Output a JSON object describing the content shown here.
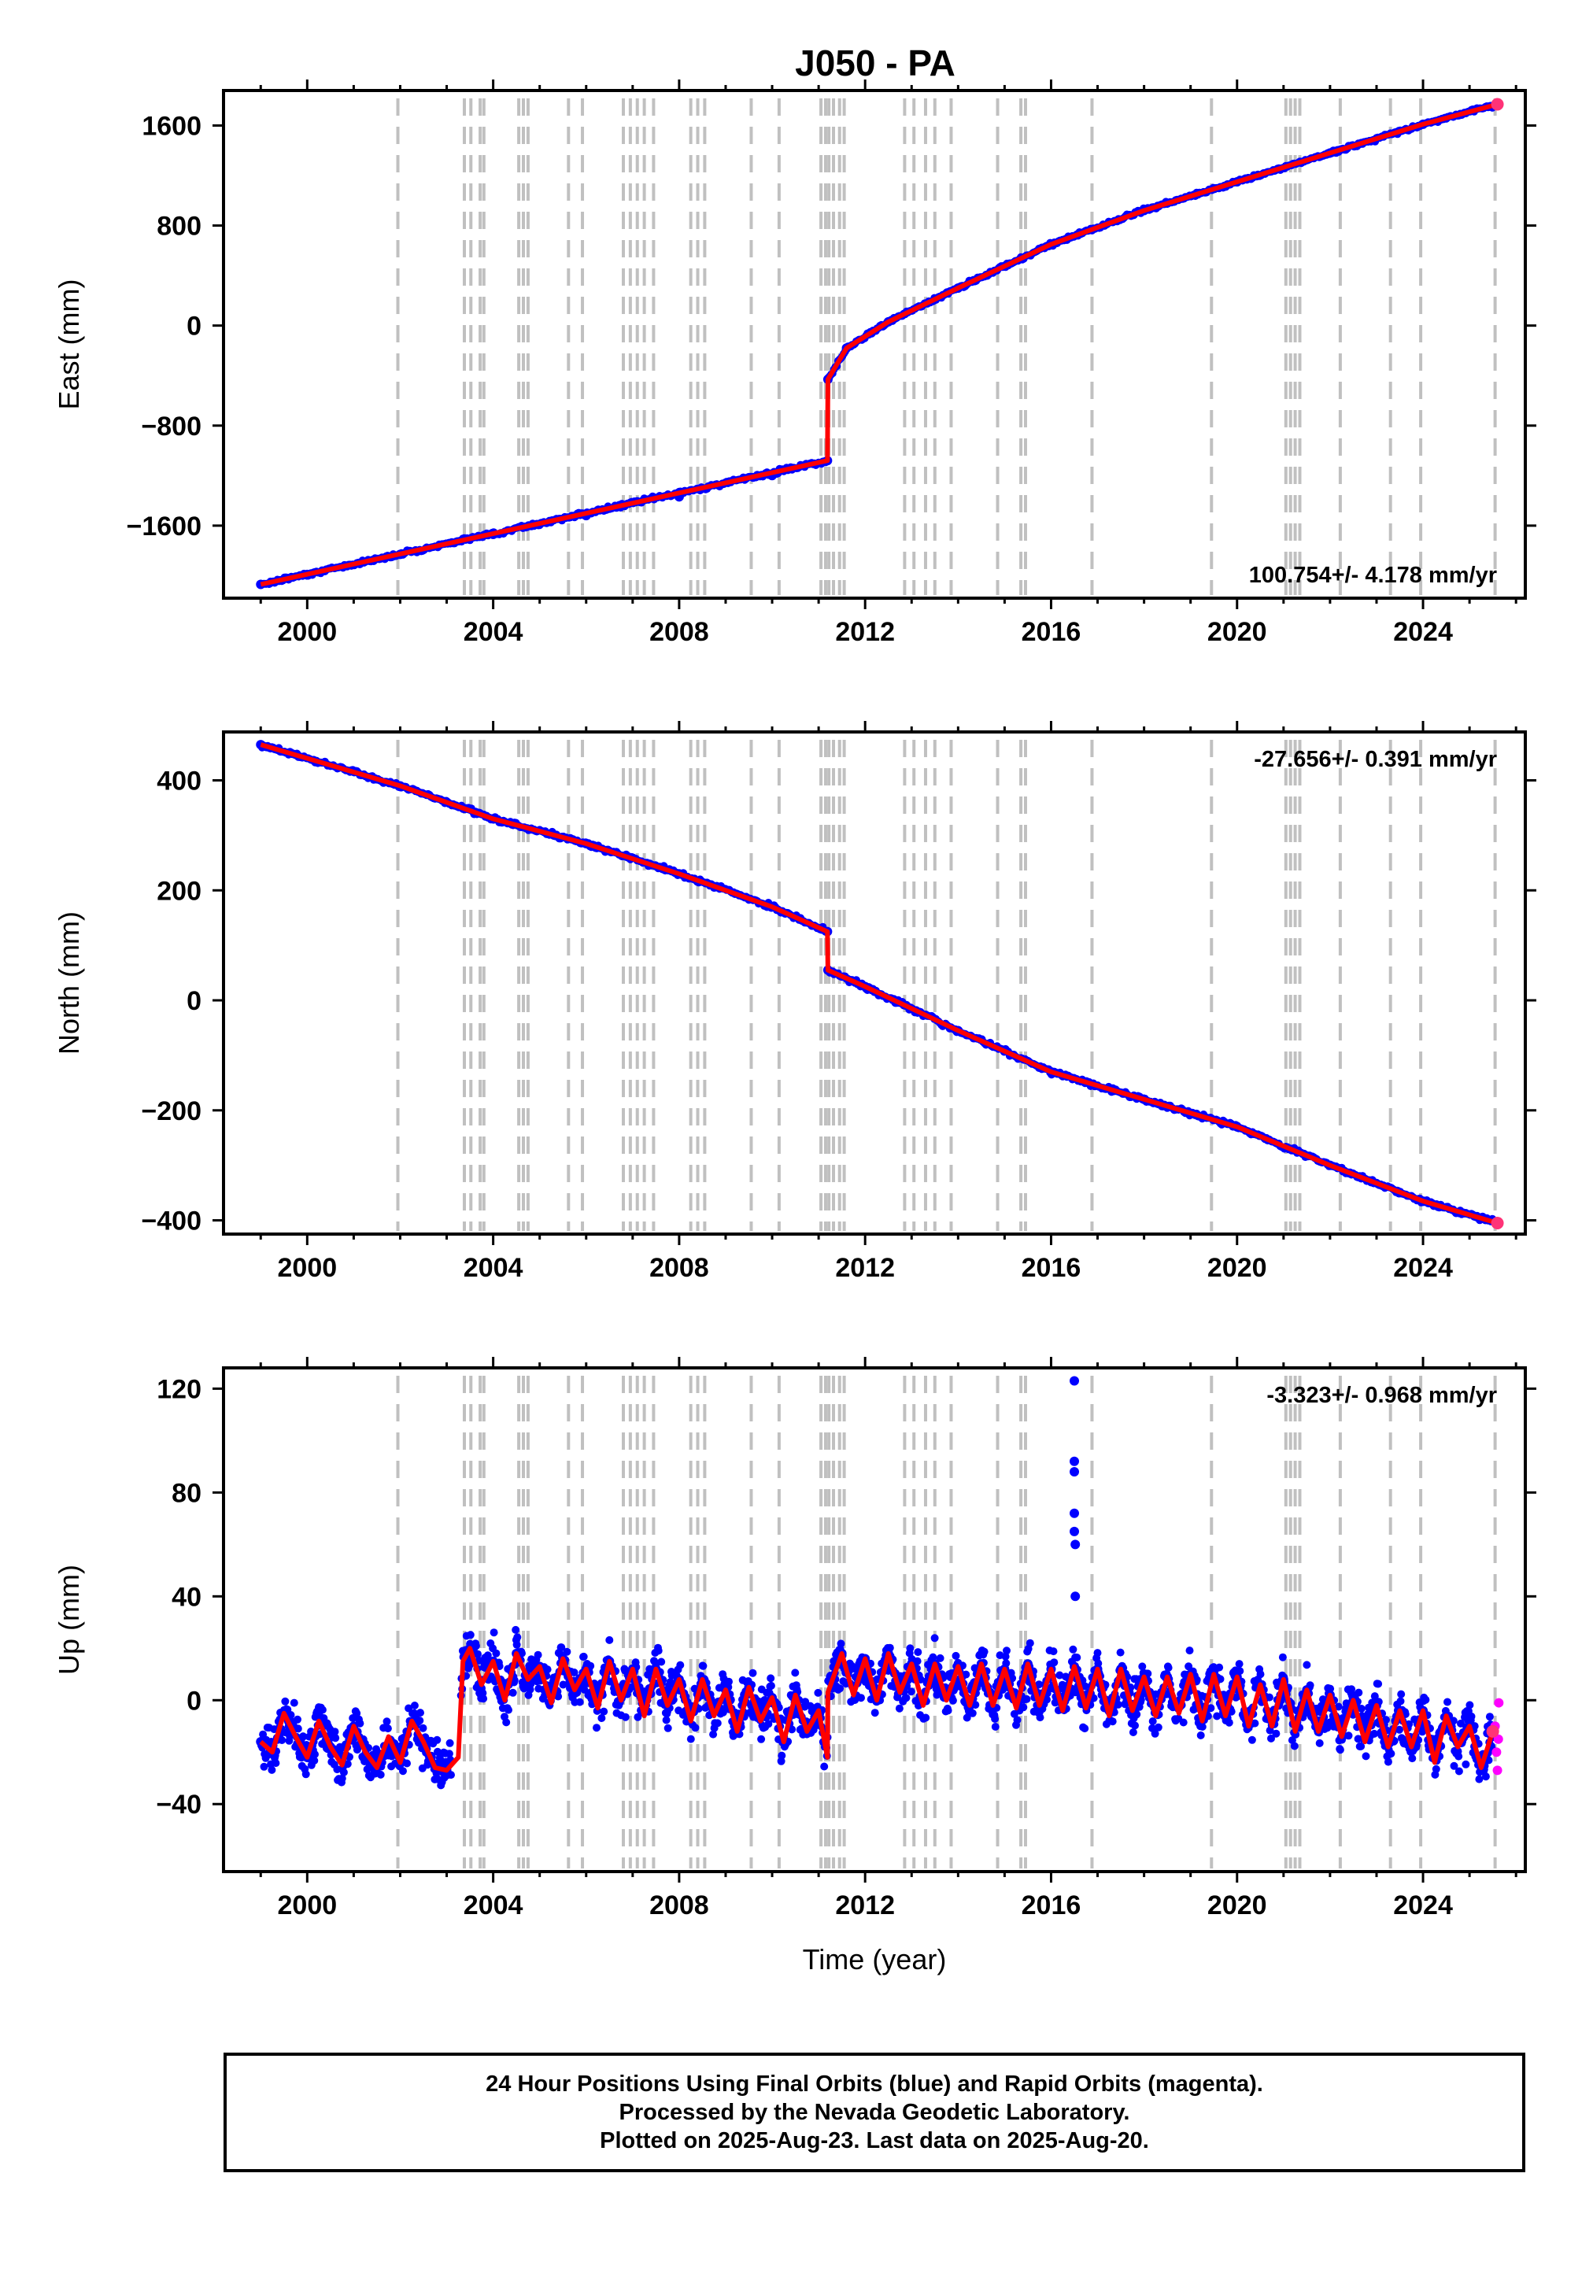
{
  "title": "J050 - PA",
  "footer": {
    "line1": "24 Hour Positions Using Final Orbits (blue) and Rapid Orbits (magenta).",
    "line2": "Processed by the Nevada Geodetic Laboratory.",
    "line3": "Plotted on 2025-Aug-23. Last data on 2025-Aug-20."
  },
  "colors": {
    "final_orbits": "#0000ff",
    "rapid_orbits": "#ff00ff",
    "model": "#ff0000",
    "event_lines": "#c0c0c0"
  },
  "chart_data": [
    {
      "type": "scatter",
      "ylabel": "East (mm)",
      "xlabel": "",
      "rate_label": "100.754+/- 4.178 mm/yr",
      "xlim": [
        1998.2,
        2026.2
      ],
      "ylim": [
        -2180,
        1880
      ],
      "yticks": [
        -1600,
        -800,
        0,
        800,
        1600
      ],
      "xticks": [
        2000,
        2004,
        2008,
        2012,
        2016,
        2020,
        2024
      ],
      "model": {
        "x": [
          1999.0,
          2011.19,
          2011.2,
          2011.6,
          2012.5,
          2014,
          2016,
          2018,
          2020,
          2022,
          2024,
          2025.6
        ],
        "y": [
          -2070,
          -1080,
          -430,
          -180,
          30,
          300,
          650,
          920,
          1150,
          1380,
          1610,
          1770
        ]
      },
      "series": [
        {
          "name": "Final Orbits",
          "color": "#0000ff",
          "x": [
            1999.0,
            2000.0,
            2002.0,
            2004.0,
            2006.0,
            2008.0,
            2010.0,
            2011.19,
            2011.2,
            2011.6,
            2012.5,
            2014,
            2016,
            2018,
            2020,
            2022,
            2024,
            2025.6
          ],
          "y": [
            -2070,
            -1990,
            -1830,
            -1670,
            -1520,
            -1370,
            -1200,
            -1080,
            -430,
            -180,
            30,
            300,
            650,
            920,
            1150,
            1380,
            1610,
            1770
          ]
        }
      ]
    },
    {
      "type": "scatter",
      "ylabel": "North (mm)",
      "xlabel": "",
      "rate_label": "-27.656+/- 0.391 mm/yr",
      "xlim": [
        1998.2,
        2026.2
      ],
      "ylim": [
        -425,
        488
      ],
      "yticks": [
        -400,
        -200,
        0,
        200,
        400
      ],
      "xticks": [
        2000,
        2004,
        2008,
        2012,
        2016,
        2020,
        2024
      ],
      "model": {
        "x": [
          1999.0,
          2002.0,
          2004.0,
          2006.0,
          2008.0,
          2010.0,
          2011.19,
          2011.2,
          2012.0,
          2014.0,
          2016.0,
          2018.0,
          2020.0,
          2022.0,
          2024.0,
          2025.6
        ],
        "y": [
          465,
          390,
          330,
          285,
          230,
          170,
          125,
          55,
          25,
          -55,
          -130,
          -180,
          -230,
          -300,
          -365,
          -405
        ]
      },
      "series": [
        {
          "name": "Final Orbits",
          "color": "#0000ff",
          "x": [
            1999.0,
            2002.0,
            2004.0,
            2006.0,
            2008.0,
            2010.0,
            2011.19,
            2011.2,
            2012.0,
            2014.0,
            2016.0,
            2018.0,
            2020.0,
            2022.0,
            2024.0,
            2025.6
          ],
          "y": [
            465,
            390,
            330,
            285,
            230,
            170,
            125,
            55,
            25,
            -55,
            -130,
            -180,
            -230,
            -300,
            -365,
            -405
          ]
        }
      ]
    },
    {
      "type": "scatter",
      "ylabel": "Up (mm)",
      "xlabel": "Time (year)",
      "rate_label": "-3.323+/- 0.968 mm/yr",
      "xlim": [
        1998.2,
        2026.2
      ],
      "ylim": [
        -66,
        128
      ],
      "yticks": [
        -40,
        0,
        40,
        80,
        120
      ],
      "xticks": [
        2000,
        2004,
        2008,
        2012,
        2016,
        2020,
        2024
      ],
      "model": {
        "x": [
          1999.0,
          1999.25,
          1999.5,
          1999.75,
          2000.0,
          2000.25,
          2000.5,
          2000.75,
          2001.0,
          2001.25,
          2001.5,
          2001.75,
          2002.0,
          2002.25,
          2002.5,
          2002.75,
          2003.0,
          2003.25,
          2003.35,
          2003.5,
          2003.75,
          2004.0,
          2004.25,
          2004.5,
          2004.75,
          2005.0,
          2005.25,
          2005.5,
          2005.75,
          2006.0,
          2006.25,
          2006.5,
          2006.75,
          2007.0,
          2007.25,
          2007.5,
          2007.75,
          2008.0,
          2008.25,
          2008.5,
          2008.75,
          2009.0,
          2009.25,
          2009.5,
          2009.75,
          2010.0,
          2010.25,
          2010.5,
          2010.75,
          2011.0,
          2011.19,
          2011.2,
          2011.5,
          2011.75,
          2012.0,
          2012.25,
          2012.5,
          2012.75,
          2013.0,
          2013.25,
          2013.5,
          2013.75,
          2014.0,
          2014.25,
          2014.5,
          2014.75,
          2015.0,
          2015.25,
          2015.5,
          2015.75,
          2016.0,
          2016.25,
          2016.5,
          2016.75,
          2017.0,
          2017.25,
          2017.5,
          2017.75,
          2018.0,
          2018.25,
          2018.5,
          2018.75,
          2019.0,
          2019.25,
          2019.5,
          2019.75,
          2020.0,
          2020.25,
          2020.5,
          2020.75,
          2021.0,
          2021.25,
          2021.5,
          2021.75,
          2022.0,
          2022.25,
          2022.5,
          2022.75,
          2023.0,
          2023.25,
          2023.5,
          2023.75,
          2024.0,
          2024.25,
          2024.5,
          2024.75,
          2025.0,
          2025.25,
          2025.5
        ],
        "y": [
          -16,
          -20,
          -5,
          -14,
          -22,
          -8,
          -18,
          -25,
          -10,
          -20,
          -26,
          -14,
          -24,
          -8,
          -16,
          -26,
          -27,
          -22,
          15,
          20,
          6,
          15,
          0,
          18,
          8,
          13,
          -1,
          16,
          4,
          12,
          -3,
          15,
          0,
          12,
          -6,
          12,
          -2,
          8,
          -8,
          8,
          -6,
          4,
          -12,
          5,
          -8,
          1,
          -16,
          2,
          -12,
          -4,
          -22,
          3,
          18,
          2,
          16,
          0,
          18,
          3,
          14,
          -2,
          14,
          0,
          13,
          -2,
          14,
          -2,
          12,
          -3,
          14,
          -2,
          12,
          -4,
          13,
          -3,
          12,
          -6,
          12,
          -4,
          9,
          -6,
          9,
          -5,
          10,
          -8,
          10,
          -6,
          9,
          -10,
          6,
          -10,
          8,
          -12,
          4,
          -12,
          2,
          -14,
          0,
          -16,
          -2,
          -18,
          -4,
          -18,
          -4,
          -24,
          -6,
          -18,
          -10,
          -26,
          -12
        ]
      },
      "series": [
        {
          "name": "Final Orbits",
          "color": "#0000ff",
          "x": [
            1999.0,
            1999.5,
            2000.0,
            2000.5,
            2001.0,
            2001.5,
            2002.0,
            2002.5,
            2003.0,
            2003.5,
            2004.0,
            2004.5,
            2005.0,
            2005.5,
            2006.0,
            2006.5,
            2007.0,
            2007.5,
            2008.0,
            2008.5,
            2009.0,
            2009.5,
            2010.0,
            2010.5,
            2011.0,
            2011.5,
            2012.0,
            2012.5,
            2013.0,
            2013.5,
            2014.0,
            2014.5,
            2015.0,
            2015.5,
            2016.0,
            2016.5,
            2017.0,
            2017.5,
            2018.0,
            2018.5,
            2019.0,
            2019.5,
            2020.0,
            2020.5,
            2021.0,
            2021.5,
            2022.0,
            2022.5,
            2023.0,
            2023.5,
            2024.0,
            2024.5,
            2025.0,
            2025.5
          ],
          "y": [
            -16,
            -5,
            -22,
            -18,
            -10,
            -26,
            -24,
            -16,
            -27,
            20,
            15,
            18,
            13,
            16,
            12,
            15,
            12,
            12,
            8,
            8,
            4,
            5,
            1,
            2,
            -4,
            18,
            16,
            18,
            14,
            14,
            13,
            14,
            12,
            14,
            12,
            13,
            12,
            12,
            9,
            9,
            10,
            10,
            9,
            6,
            8,
            4,
            2,
            0,
            -2,
            -4,
            -4,
            -6,
            -10,
            -12
          ]
        },
        {
          "name": "Rapid Orbits",
          "color": "#ff00ff",
          "x": [
            2025.55,
            2025.58,
            2025.6,
            2025.62,
            2025.63
          ],
          "y": [
            -10,
            -20,
            -27,
            -15,
            -1
          ]
        }
      ],
      "outliers": {
        "x": [
          2016.5,
          2016.5,
          2016.5,
          2016.5,
          2016.5,
          2016.52,
          2016.52
        ],
        "y": [
          123,
          92,
          88,
          72,
          65,
          60,
          40
        ]
      }
    }
  ],
  "event_years": [
    2001.95,
    2003.38,
    2003.52,
    2003.72,
    2003.8,
    2004.55,
    2004.65,
    2004.75,
    2005.62,
    2005.92,
    2006.8,
    2006.95,
    2007.1,
    2007.25,
    2007.45,
    2008.25,
    2008.4,
    2008.55,
    2009.55,
    2010.15,
    2011.05,
    2011.15,
    2011.22,
    2011.32,
    2011.45,
    2011.55,
    2012.85,
    2013.05,
    2013.3,
    2013.5,
    2013.85,
    2014.85,
    2015.35,
    2015.45,
    2016.88,
    2019.45,
    2021.05,
    2021.15,
    2021.25,
    2021.35,
    2022.22,
    2023.3,
    2023.95,
    2025.55
  ]
}
